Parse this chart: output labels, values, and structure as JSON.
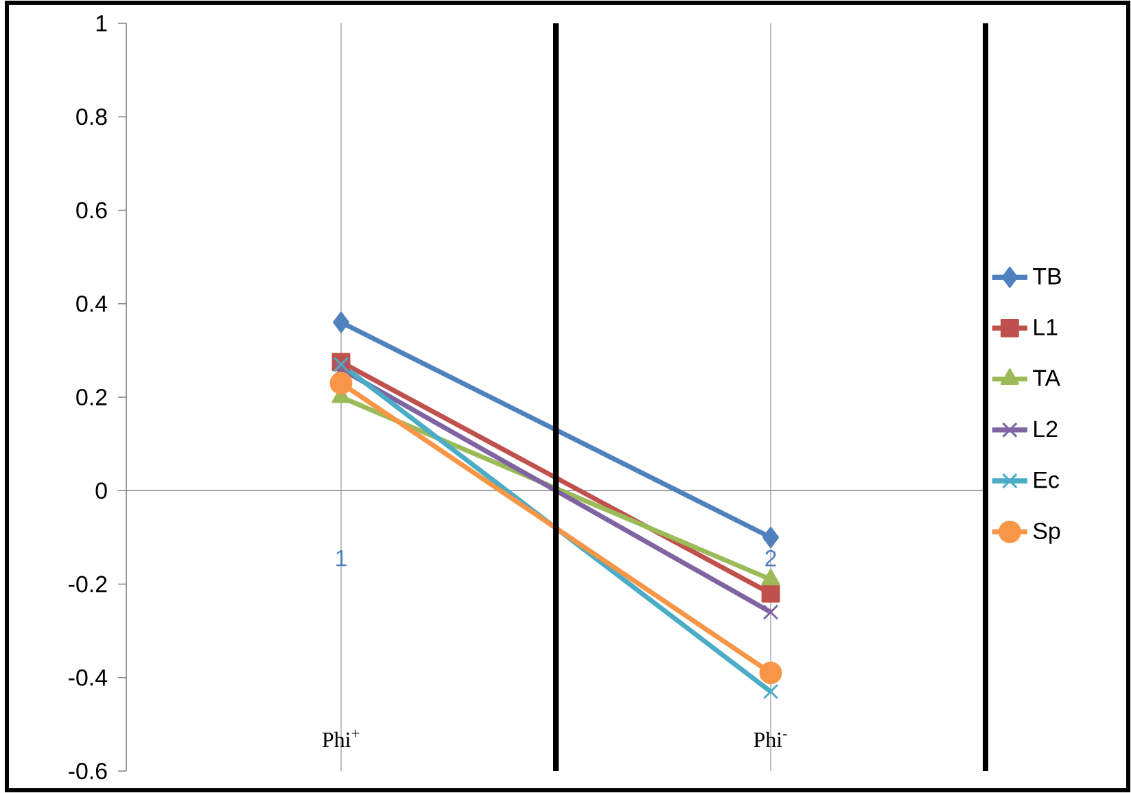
{
  "chart_data": {
    "type": "line",
    "x": [
      1,
      2
    ],
    "xlim": [
      0.5,
      2.5
    ],
    "xticks": [
      {
        "value": 1,
        "label": "1"
      },
      {
        "value": 2,
        "label": "2"
      }
    ],
    "ylim": [
      -0.6,
      1
    ],
    "yticks": [
      -0.6,
      -0.4,
      -0.2,
      0,
      0.2,
      0.4,
      0.6,
      0.8,
      1
    ],
    "grid": "x",
    "legend": "right",
    "series": [
      {
        "name": "TB",
        "color": "#4f81bd",
        "marker": "diamond",
        "values": [
          0.36,
          -0.1
        ]
      },
      {
        "name": "L1",
        "color": "#c0504d",
        "marker": "square",
        "values": [
          0.275,
          -0.22
        ]
      },
      {
        "name": "TA",
        "color": "#9bbb59",
        "marker": "triangle",
        "values": [
          0.2,
          -0.19
        ]
      },
      {
        "name": "L2",
        "color": "#8064a2",
        "marker": "cross",
        "values": [
          0.26,
          -0.26
        ]
      },
      {
        "name": "Ec",
        "color": "#4bacc6",
        "marker": "cross",
        "values": [
          0.27,
          -0.43
        ]
      },
      {
        "name": "Sp",
        "color": "#f79646",
        "marker": "circle",
        "values": [
          0.23,
          -0.39
        ]
      }
    ],
    "ref_lines": [
      {
        "axis": "x",
        "value": 1.5,
        "color": "#000000"
      },
      {
        "axis": "x",
        "value": 2.5,
        "color": "#000000"
      }
    ],
    "annotations": [
      "Phi$^{+}$",
      "Phi$^{-}$"
    ]
  }
}
